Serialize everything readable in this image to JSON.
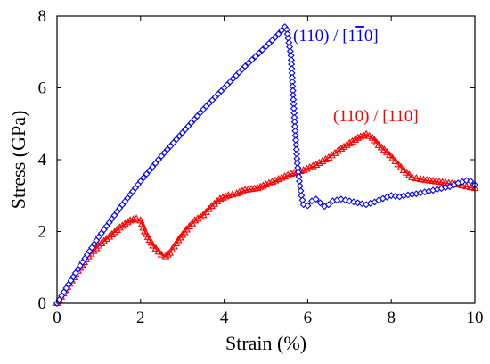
{
  "chart_data": {
    "type": "line",
    "title": "",
    "xlabel": "Strain (%)",
    "ylabel": "Stress (GPa)",
    "xlim": [
      0,
      10
    ],
    "ylim": [
      0,
      8
    ],
    "xticks": [
      0,
      2,
      4,
      6,
      8,
      10
    ],
    "yticks": [
      0,
      2,
      4,
      6,
      8
    ],
    "grid": false,
    "legend": "none",
    "series": [
      {
        "name": "(110) / [1̄​10]",
        "label_parts": [
          "(110) / [1",
          "1",
          "0]"
        ],
        "overbar_index": 1,
        "color": "#0000ff",
        "marker": "diamond",
        "points": [
          [
            0,
            0
          ],
          [
            0.5,
            0.95
          ],
          [
            1.0,
            1.85
          ],
          [
            1.5,
            2.65
          ],
          [
            2.0,
            3.4
          ],
          [
            2.5,
            4.1
          ],
          [
            3.0,
            4.75
          ],
          [
            3.5,
            5.4
          ],
          [
            4.0,
            6.0
          ],
          [
            4.5,
            6.6
          ],
          [
            5.0,
            7.15
          ],
          [
            5.3,
            7.5
          ],
          [
            5.45,
            7.7
          ],
          [
            5.5,
            7.62
          ],
          [
            5.6,
            6.9
          ],
          [
            5.65,
            5.8
          ],
          [
            5.7,
            4.8
          ],
          [
            5.75,
            3.9
          ],
          [
            5.8,
            3.4
          ],
          [
            5.85,
            3.0
          ],
          [
            5.9,
            2.75
          ],
          [
            6.0,
            2.72
          ],
          [
            6.1,
            2.85
          ],
          [
            6.2,
            2.9
          ],
          [
            6.3,
            2.8
          ],
          [
            6.4,
            2.7
          ],
          [
            6.5,
            2.75
          ],
          [
            6.6,
            2.85
          ],
          [
            6.8,
            2.9
          ],
          [
            7.0,
            2.85
          ],
          [
            7.2,
            2.8
          ],
          [
            7.4,
            2.75
          ],
          [
            7.6,
            2.82
          ],
          [
            7.8,
            2.92
          ],
          [
            8.0,
            3.0
          ],
          [
            8.2,
            2.97
          ],
          [
            8.4,
            3.02
          ],
          [
            8.6,
            3.05
          ],
          [
            8.8,
            3.1
          ],
          [
            9.0,
            3.15
          ],
          [
            9.2,
            3.2
          ],
          [
            9.4,
            3.25
          ],
          [
            9.6,
            3.35
          ],
          [
            9.8,
            3.42
          ],
          [
            9.9,
            3.4
          ],
          [
            10.0,
            3.3
          ]
        ]
      },
      {
        "name": "(110) / [110]",
        "color": "#ff0000",
        "marker": "triangle",
        "points": [
          [
            0,
            0
          ],
          [
            0.25,
            0.45
          ],
          [
            0.5,
            0.9
          ],
          [
            0.75,
            1.3
          ],
          [
            1.0,
            1.6
          ],
          [
            1.25,
            1.85
          ],
          [
            1.5,
            2.1
          ],
          [
            1.75,
            2.3
          ],
          [
            1.9,
            2.35
          ],
          [
            2.0,
            2.3
          ],
          [
            2.1,
            2.0
          ],
          [
            2.3,
            1.6
          ],
          [
            2.5,
            1.35
          ],
          [
            2.6,
            1.3
          ],
          [
            2.7,
            1.4
          ],
          [
            2.9,
            1.75
          ],
          [
            3.1,
            2.05
          ],
          [
            3.3,
            2.3
          ],
          [
            3.5,
            2.45
          ],
          [
            3.7,
            2.7
          ],
          [
            3.9,
            2.9
          ],
          [
            4.1,
            3.0
          ],
          [
            4.3,
            3.05
          ],
          [
            4.5,
            3.15
          ],
          [
            4.8,
            3.2
          ],
          [
            5.0,
            3.3
          ],
          [
            5.3,
            3.45
          ],
          [
            5.6,
            3.6
          ],
          [
            5.9,
            3.7
          ],
          [
            6.2,
            3.85
          ],
          [
            6.5,
            4.05
          ],
          [
            6.8,
            4.3
          ],
          [
            7.0,
            4.45
          ],
          [
            7.2,
            4.6
          ],
          [
            7.4,
            4.7
          ],
          [
            7.55,
            4.6
          ],
          [
            7.7,
            4.4
          ],
          [
            7.9,
            4.2
          ],
          [
            8.1,
            3.95
          ],
          [
            8.3,
            3.7
          ],
          [
            8.5,
            3.5
          ],
          [
            8.7,
            3.45
          ],
          [
            9.0,
            3.4
          ],
          [
            9.3,
            3.35
          ],
          [
            9.6,
            3.3
          ],
          [
            9.8,
            3.25
          ],
          [
            10.0,
            3.2
          ]
        ]
      }
    ]
  }
}
